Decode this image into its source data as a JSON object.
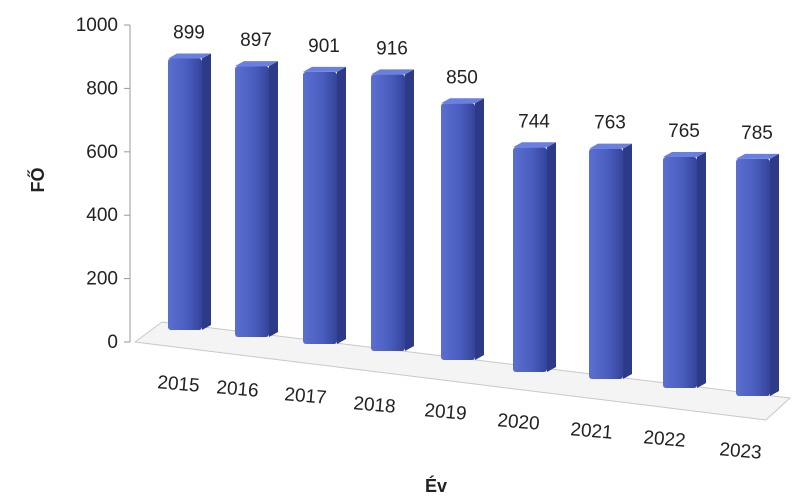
{
  "chart_data": {
    "type": "bar",
    "title": "",
    "xlabel": "Év",
    "ylabel": "FŐ",
    "categories": [
      "2015",
      "2016",
      "2017",
      "2018",
      "2019",
      "2020",
      "2021",
      "2022",
      "2023"
    ],
    "values": [
      899,
      897,
      901,
      916,
      850,
      744,
      763,
      765,
      785
    ],
    "ylim": [
      0,
      1000
    ],
    "yticks": [
      "0",
      "200",
      "400",
      "600",
      "800",
      "1000"
    ],
    "data_labels": [
      "899",
      "897",
      "901",
      "916",
      "850",
      "744",
      "763",
      "765",
      "785"
    ],
    "grid": false,
    "legend": "none",
    "bar_color": "#4a5ec0"
  }
}
